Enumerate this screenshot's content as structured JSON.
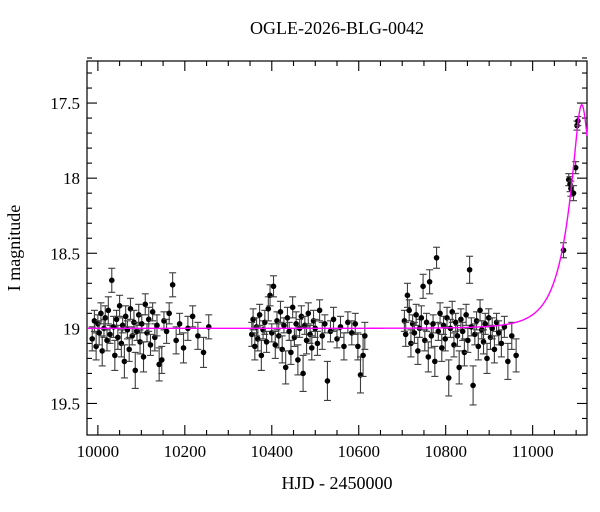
{
  "chart_data": {
    "type": "scatter",
    "title": "OGLE-2026-BLG-0042",
    "xlabel": "HJD - 2450000",
    "ylabel": "I magnitude",
    "xlim": [
      9975,
      11125
    ],
    "ylim": [
      19.71,
      17.22
    ],
    "y_inverted": true,
    "grid": false,
    "legend": "none",
    "axes": {
      "x_minor_step": 50,
      "x_major_step": 200,
      "x_label_ticks": [
        10000,
        10200,
        10400,
        10600,
        10800,
        11000
      ],
      "y_minor_step": 0.1,
      "y_major_step": 0.5,
      "y_label_ticks": [
        17.5,
        18,
        18.5,
        19,
        19.5
      ]
    },
    "colors": {
      "points": "#000000",
      "error_bars": "#3d3d3d",
      "model_curve": "#ff00ff",
      "frame": "#000000",
      "background": "#ffffff"
    },
    "model": {
      "type": "paczynski-microlensing",
      "t0": 11113,
      "tE": 65,
      "u0": 0.26,
      "baseline_mag": 19.0,
      "peak_mag": 17.5
    },
    "points_format": [
      "hjd_minus_2450000",
      "I_mag",
      "mag_error"
    ],
    "points": [
      [
        9987,
        19.07,
        0.08
      ],
      [
        9992,
        18.95,
        0.07
      ],
      [
        9996,
        19.12,
        0.09
      ],
      [
        10000,
        18.97,
        0.06
      ],
      [
        10003,
        19.03,
        0.08
      ],
      [
        10007,
        18.9,
        0.07
      ],
      [
        10010,
        19.15,
        0.1
      ],
      [
        10014,
        19.0,
        0.06
      ],
      [
        10017,
        18.93,
        0.08
      ],
      [
        10021,
        19.08,
        0.07
      ],
      [
        10024,
        18.88,
        0.09
      ],
      [
        10028,
        19.04,
        0.06
      ],
      [
        10032,
        18.68,
        0.08
      ],
      [
        10036,
        18.99,
        0.07
      ],
      [
        10039,
        19.18,
        0.1
      ],
      [
        10043,
        18.94,
        0.06
      ],
      [
        10046,
        19.06,
        0.08
      ],
      [
        10050,
        18.85,
        0.07
      ],
      [
        10054,
        19.1,
        0.09
      ],
      [
        10057,
        18.98,
        0.05
      ],
      [
        10061,
        19.22,
        0.11
      ],
      [
        10064,
        18.92,
        0.07
      ],
      [
        10068,
        19.01,
        0.06
      ],
      [
        10072,
        19.14,
        0.08
      ],
      [
        10075,
        18.87,
        0.07
      ],
      [
        10079,
        19.05,
        0.06
      ],
      [
        10083,
        18.96,
        0.08
      ],
      [
        10086,
        19.28,
        0.12
      ],
      [
        10090,
        19.02,
        0.06
      ],
      [
        10094,
        18.91,
        0.07
      ],
      [
        10097,
        19.09,
        0.08
      ],
      [
        10101,
        18.97,
        0.06
      ],
      [
        10105,
        19.19,
        0.1
      ],
      [
        10109,
        18.84,
        0.07
      ],
      [
        10113,
        19.03,
        0.06
      ],
      [
        10117,
        18.94,
        0.08
      ],
      [
        10121,
        19.11,
        0.07
      ],
      [
        10126,
        18.89,
        0.06
      ],
      [
        10131,
        19.06,
        0.09
      ],
      [
        10136,
        18.98,
        0.07
      ],
      [
        10141,
        19.24,
        0.11
      ],
      [
        10147,
        19.21,
        0.09
      ],
      [
        10152,
        18.95,
        0.06
      ],
      [
        10158,
        19.02,
        0.08
      ],
      [
        10164,
        18.9,
        0.07
      ],
      [
        10172,
        18.71,
        0.08
      ],
      [
        10180,
        19.08,
        0.09
      ],
      [
        10188,
        18.97,
        0.07
      ],
      [
        10197,
        19.13,
        0.1
      ],
      [
        10207,
        19.0,
        0.08
      ],
      [
        10218,
        18.92,
        0.07
      ],
      [
        10230,
        19.05,
        0.09
      ],
      [
        10243,
        19.16,
        0.1
      ],
      [
        10255,
        18.99,
        0.08
      ],
      [
        10354,
        19.04,
        0.08
      ],
      [
        10357,
        18.94,
        0.07
      ],
      [
        10361,
        19.12,
        0.09
      ],
      [
        10365,
        18.99,
        0.06
      ],
      [
        10368,
        19.07,
        0.08
      ],
      [
        10372,
        18.91,
        0.07
      ],
      [
        10376,
        19.18,
        0.1
      ],
      [
        10380,
        19.01,
        0.06
      ],
      [
        10384,
        18.96,
        0.08
      ],
      [
        10388,
        19.09,
        0.07
      ],
      [
        10392,
        18.87,
        0.08
      ],
      [
        10396,
        18.78,
        0.07
      ],
      [
        10400,
        19.03,
        0.06
      ],
      [
        10404,
        18.72,
        0.07
      ],
      [
        10408,
        19.11,
        0.09
      ],
      [
        10412,
        18.95,
        0.06
      ],
      [
        10416,
        19.05,
        0.08
      ],
      [
        10420,
        18.89,
        0.07
      ],
      [
        10424,
        19.14,
        0.09
      ],
      [
        10428,
        18.98,
        0.05
      ],
      [
        10432,
        19.26,
        0.11
      ],
      [
        10436,
        18.93,
        0.07
      ],
      [
        10440,
        19.02,
        0.06
      ],
      [
        10444,
        19.16,
        0.08
      ],
      [
        10448,
        18.86,
        0.07
      ],
      [
        10452,
        19.06,
        0.06
      ],
      [
        10456,
        18.97,
        0.08
      ],
      [
        10460,
        19.21,
        0.1
      ],
      [
        10464,
        19.0,
        0.06
      ],
      [
        10468,
        18.92,
        0.07
      ],
      [
        10472,
        19.3,
        0.12
      ],
      [
        10476,
        18.98,
        0.06
      ],
      [
        10480,
        19.08,
        0.09
      ],
      [
        10484,
        18.9,
        0.07
      ],
      [
        10488,
        19.04,
        0.06
      ],
      [
        10492,
        19.13,
        0.08
      ],
      [
        10496,
        18.95,
        0.07
      ],
      [
        10500,
        19.0,
        0.06
      ],
      [
        10505,
        19.1,
        0.08
      ],
      [
        10510,
        18.88,
        0.07
      ],
      [
        10516,
        19.05,
        0.09
      ],
      [
        10522,
        18.97,
        0.06
      ],
      [
        10528,
        19.35,
        0.13
      ],
      [
        10535,
        19.02,
        0.07
      ],
      [
        10542,
        18.94,
        0.08
      ],
      [
        10550,
        19.07,
        0.06
      ],
      [
        10558,
        18.99,
        0.07
      ],
      [
        10566,
        19.12,
        0.09
      ],
      [
        10575,
        18.96,
        0.07
      ],
      [
        10584,
        19.03,
        0.08
      ],
      [
        10592,
        18.97,
        0.07
      ],
      [
        10598,
        19.12,
        0.09
      ],
      [
        10604,
        19.31,
        0.12
      ],
      [
        10610,
        19.18,
        0.14
      ],
      [
        10614,
        19.05,
        0.09
      ],
      [
        10705,
        18.95,
        0.07
      ],
      [
        10708,
        19.04,
        0.08
      ],
      [
        10712,
        18.78,
        0.08
      ],
      [
        10716,
        18.88,
        0.07
      ],
      [
        10720,
        19.1,
        0.09
      ],
      [
        10724,
        18.97,
        0.06
      ],
      [
        10728,
        19.03,
        0.07
      ],
      [
        10732,
        18.91,
        0.07
      ],
      [
        10736,
        19.15,
        0.09
      ],
      [
        10740,
        19.0,
        0.06
      ],
      [
        10744,
        18.93,
        0.08
      ],
      [
        10748,
        18.72,
        0.08
      ],
      [
        10752,
        19.08,
        0.07
      ],
      [
        10756,
        18.96,
        0.06
      ],
      [
        10760,
        19.19,
        0.1
      ],
      [
        10763,
        18.69,
        0.08
      ],
      [
        10767,
        19.05,
        0.08
      ],
      [
        10771,
        18.97,
        0.06
      ],
      [
        10775,
        19.22,
        0.1
      ],
      [
        10779,
        18.53,
        0.07
      ],
      [
        10783,
        19.02,
        0.06
      ],
      [
        10787,
        18.9,
        0.07
      ],
      [
        10791,
        19.13,
        0.09
      ],
      [
        10795,
        18.98,
        0.06
      ],
      [
        10799,
        19.07,
        0.08
      ],
      [
        10803,
        18.93,
        0.07
      ],
      [
        10807,
        19.33,
        0.12
      ],
      [
        10811,
        19.0,
        0.06
      ],
      [
        10815,
        18.89,
        0.07
      ],
      [
        10819,
        19.11,
        0.08
      ],
      [
        10823,
        18.96,
        0.06
      ],
      [
        10827,
        19.05,
        0.07
      ],
      [
        10831,
        19.26,
        0.11
      ],
      [
        10835,
        18.94,
        0.07
      ],
      [
        10839,
        19.02,
        0.06
      ],
      [
        10843,
        19.16,
        0.09
      ],
      [
        10847,
        18.91,
        0.07
      ],
      [
        10851,
        19.08,
        0.08
      ],
      [
        10855,
        18.61,
        0.09
      ],
      [
        10859,
        18.99,
        0.06
      ],
      [
        10863,
        19.38,
        0.13
      ],
      [
        10867,
        19.04,
        0.07
      ],
      [
        10871,
        18.95,
        0.06
      ],
      [
        10875,
        19.12,
        0.09
      ],
      [
        10879,
        18.88,
        0.07
      ],
      [
        10883,
        19.01,
        0.06
      ],
      [
        10887,
        19.09,
        0.08
      ],
      [
        10891,
        18.97,
        0.07
      ],
      [
        10895,
        19.2,
        0.1
      ],
      [
        10899,
        18.93,
        0.06
      ],
      [
        10903,
        19.06,
        0.08
      ],
      [
        10907,
        19.0,
        0.07
      ],
      [
        10912,
        19.14,
        0.09
      ],
      [
        10917,
        18.96,
        0.06
      ],
      [
        10922,
        19.03,
        0.08
      ],
      [
        10928,
        19.1,
        0.09
      ],
      [
        10935,
        18.99,
        0.07
      ],
      [
        10943,
        19.22,
        0.12
      ],
      [
        10952,
        19.05,
        0.09
      ],
      [
        10962,
        19.18,
        0.11
      ],
      [
        11071,
        18.48,
        0.05
      ],
      [
        11083,
        18.01,
        0.04
      ],
      [
        11086,
        18.04,
        0.05
      ],
      [
        11088,
        18.07,
        0.05
      ],
      [
        11094,
        18.1,
        0.05
      ],
      [
        11099,
        17.93,
        0.04
      ],
      [
        11102,
        17.65,
        0.03
      ],
      [
        11104,
        17.62,
        0.03
      ]
    ]
  }
}
